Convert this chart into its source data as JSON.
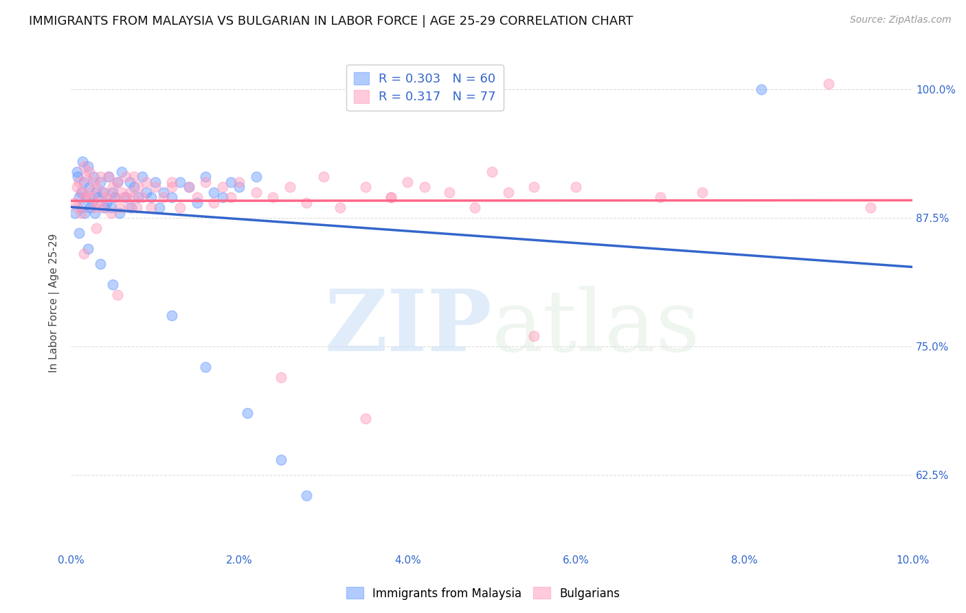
{
  "title": "IMMIGRANTS FROM MALAYSIA VS BULGARIAN IN LABOR FORCE | AGE 25-29 CORRELATION CHART",
  "source": "Source: ZipAtlas.com",
  "ylabel": "In Labor Force | Age 25-29",
  "xlim": [
    0.0,
    10.0
  ],
  "ylim": [
    55.0,
    103.5
  ],
  "yticks": [
    62.5,
    75.0,
    87.5,
    100.0
  ],
  "xticks": [
    0.0,
    2.0,
    4.0,
    6.0,
    8.0,
    10.0
  ],
  "xtick_labels": [
    "0.0%",
    "2.0%",
    "4.0%",
    "6.0%",
    "8.0%",
    "10.0%"
  ],
  "ytick_labels": [
    "62.5%",
    "75.0%",
    "87.5%",
    "100.0%"
  ],
  "malaysia_color": "#6699ff",
  "bulgaria_color": "#ff99bb",
  "malaysia_R": 0.303,
  "malaysia_N": 60,
  "bulgaria_R": 0.317,
  "bulgaria_N": 77,
  "malaysia_x": [
    0.05,
    0.07,
    0.08,
    0.1,
    0.12,
    0.13,
    0.14,
    0.15,
    0.16,
    0.18,
    0.2,
    0.22,
    0.23,
    0.25,
    0.27,
    0.28,
    0.3,
    0.32,
    0.35,
    0.38,
    0.4,
    0.42,
    0.45,
    0.48,
    0.5,
    0.52,
    0.55,
    0.58,
    0.6,
    0.65,
    0.7,
    0.72,
    0.75,
    0.8,
    0.85,
    0.9,
    0.95,
    1.0,
    1.05,
    1.1,
    1.2,
    1.3,
    1.4,
    1.5,
    1.6,
    1.7,
    1.8,
    1.9,
    2.0,
    2.2,
    0.1,
    0.2,
    0.35,
    0.5,
    1.2,
    1.6,
    2.1,
    2.5,
    2.8,
    8.2
  ],
  "malaysia_y": [
    88.0,
    92.0,
    91.5,
    89.5,
    90.0,
    88.5,
    93.0,
    91.0,
    88.0,
    89.5,
    92.5,
    90.5,
    88.5,
    89.0,
    91.5,
    88.0,
    90.0,
    89.5,
    91.0,
    90.0,
    88.5,
    89.0,
    91.5,
    88.5,
    90.0,
    89.5,
    91.0,
    88.0,
    92.0,
    89.5,
    91.0,
    88.5,
    90.5,
    89.5,
    91.5,
    90.0,
    89.5,
    91.0,
    88.5,
    90.0,
    89.5,
    91.0,
    90.5,
    89.0,
    91.5,
    90.0,
    89.5,
    91.0,
    90.5,
    91.5,
    86.0,
    84.5,
    83.0,
    81.0,
    78.0,
    73.0,
    68.5,
    64.0,
    60.5,
    100.0
  ],
  "bulgaria_x": [
    0.05,
    0.07,
    0.08,
    0.1,
    0.12,
    0.13,
    0.15,
    0.17,
    0.18,
    0.2,
    0.22,
    0.25,
    0.27,
    0.28,
    0.3,
    0.32,
    0.35,
    0.37,
    0.4,
    0.42,
    0.45,
    0.48,
    0.5,
    0.52,
    0.55,
    0.58,
    0.6,
    0.63,
    0.65,
    0.68,
    0.7,
    0.73,
    0.75,
    0.78,
    0.8,
    0.85,
    0.9,
    0.95,
    1.0,
    1.1,
    1.2,
    1.3,
    1.4,
    1.5,
    1.6,
    1.7,
    1.8,
    1.9,
    2.0,
    2.2,
    2.4,
    2.6,
    2.8,
    3.0,
    3.5,
    3.8,
    4.0,
    4.5,
    5.0,
    5.5,
    3.2,
    3.8,
    4.2,
    4.8,
    5.2,
    6.0,
    7.0,
    7.5,
    9.0,
    9.5,
    0.15,
    0.3,
    0.55,
    1.2,
    2.5,
    3.5,
    5.5
  ],
  "bulgaria_y": [
    89.0,
    90.5,
    88.5,
    91.0,
    88.0,
    90.0,
    92.5,
    89.5,
    91.5,
    90.0,
    92.0,
    89.5,
    91.0,
    88.5,
    90.5,
    89.0,
    91.5,
    88.5,
    90.0,
    89.5,
    91.5,
    88.0,
    90.5,
    89.5,
    91.0,
    88.5,
    90.0,
    89.5,
    91.5,
    88.5,
    90.0,
    89.5,
    91.5,
    88.5,
    90.5,
    89.5,
    91.0,
    88.5,
    90.5,
    89.5,
    91.0,
    88.5,
    90.5,
    89.5,
    91.0,
    89.0,
    90.5,
    89.5,
    91.0,
    90.0,
    89.5,
    90.5,
    89.0,
    91.5,
    90.5,
    89.5,
    91.0,
    90.0,
    92.0,
    90.5,
    88.5,
    89.5,
    90.5,
    88.5,
    90.0,
    90.5,
    89.5,
    90.0,
    100.5,
    88.5,
    84.0,
    86.5,
    80.0,
    90.5,
    72.0,
    68.0,
    76.0
  ],
  "watermark_zip": "ZIP",
  "watermark_atlas": "atlas",
  "background_color": "#ffffff",
  "grid_color": "#dddddd",
  "title_fontsize": 13,
  "label_fontsize": 11,
  "tick_fontsize": 11,
  "legend_fontsize": 13
}
